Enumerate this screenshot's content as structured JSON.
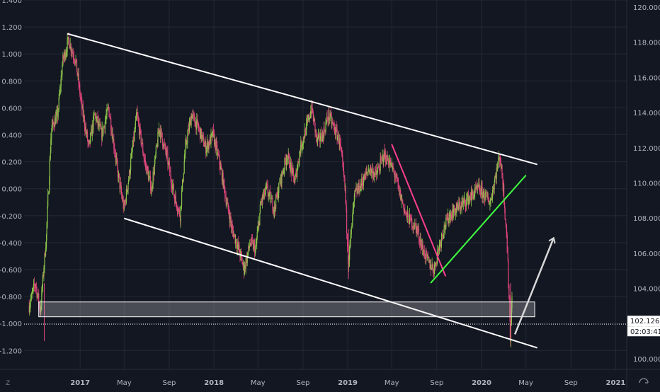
{
  "chart_data": {
    "type": "candlestick",
    "title": "",
    "xlabel": "",
    "ylabel": "",
    "left_axis": {
      "ticks": [
        "1.400",
        "1.200",
        "1.000",
        "0.800",
        "0.600",
        "0.400",
        "0.200",
        "0.000",
        "-0.200",
        "-0.400",
        "-0.600",
        "-0.800",
        "-1.000",
        "-1.200"
      ],
      "ylim": [
        -1.34,
        1.4
      ]
    },
    "right_axis": {
      "ticks": [
        "120.000",
        "118.000",
        "116.000",
        "114.000",
        "112.000",
        "110.000",
        "108.000",
        "106.000",
        "104.000",
        "102.000",
        "100.000"
      ],
      "ylim": [
        99.4,
        120.4
      ],
      "current_price": "102.126",
      "countdown": "02:03:41"
    },
    "x_axis": {
      "ticks": [
        "2017",
        "May",
        "Sep",
        "2018",
        "May",
        "Sep",
        "2019",
        "May",
        "Sep",
        "2020",
        "May",
        "Sep",
        "2021"
      ],
      "xlim": [
        "2016-08-01",
        "2021-01-31"
      ]
    },
    "colors": {
      "background": "#131722",
      "grid": "#242834",
      "text": "#b2b5be",
      "up": "#8bc34a",
      "down": "#e0457b",
      "channel": "#ffffff",
      "pink_trend": "#ff3f8e",
      "green_trend": "#3fff3f",
      "zone_fill": "#d6d6d6",
      "arrow": "#d8d8d8",
      "price_label_bg": "#ffffff",
      "price_label_text": "#131722"
    },
    "series": [
      {
        "values": [
          [
            "2016-08-15",
            -0.87
          ],
          [
            "2016-09-01",
            -0.7
          ],
          [
            "2016-09-15",
            -0.9
          ],
          [
            "2016-10-01",
            -0.35
          ],
          [
            "2016-10-15",
            0.45
          ],
          [
            "2016-11-01",
            0.55
          ],
          [
            "2016-11-15",
            0.95
          ],
          [
            "2016-12-01",
            1.1
          ],
          [
            "2016-12-20",
            0.95
          ],
          [
            "2017-01-05",
            0.62
          ],
          [
            "2017-01-25",
            0.3
          ],
          [
            "2017-02-10",
            0.55
          ],
          [
            "2017-03-01",
            0.4
          ],
          [
            "2017-03-20",
            0.6
          ],
          [
            "2017-04-10",
            0.2
          ],
          [
            "2017-04-20",
            0.02
          ],
          [
            "2017-05-01",
            -0.15
          ],
          [
            "2017-05-15",
            0.1
          ],
          [
            "2017-06-05",
            0.55
          ],
          [
            "2017-06-25",
            0.22
          ],
          [
            "2017-07-15",
            0.0
          ],
          [
            "2017-08-05",
            0.45
          ],
          [
            "2017-08-25",
            0.25
          ],
          [
            "2017-09-15",
            -0.05
          ],
          [
            "2017-10-01",
            -0.2
          ],
          [
            "2017-10-15",
            0.3
          ],
          [
            "2017-11-01",
            0.55
          ],
          [
            "2017-11-20",
            0.45
          ],
          [
            "2017-12-10",
            0.3
          ],
          [
            "2017-12-30",
            0.4
          ],
          [
            "2018-01-20",
            0.15
          ],
          [
            "2018-02-05",
            -0.1
          ],
          [
            "2018-02-20",
            -0.3
          ],
          [
            "2018-03-10",
            -0.45
          ],
          [
            "2018-03-25",
            -0.6
          ],
          [
            "2018-04-10",
            -0.4
          ],
          [
            "2018-04-25",
            -0.45
          ],
          [
            "2018-05-10",
            -0.1
          ],
          [
            "2018-05-25",
            0.0
          ],
          [
            "2018-06-15",
            -0.15
          ],
          [
            "2018-07-01",
            0.05
          ],
          [
            "2018-07-20",
            0.25
          ],
          [
            "2018-08-10",
            0.05
          ],
          [
            "2018-08-25",
            0.3
          ],
          [
            "2018-09-10",
            0.45
          ],
          [
            "2018-09-25",
            0.6
          ],
          [
            "2018-10-10",
            0.35
          ],
          [
            "2018-10-25",
            0.4
          ],
          [
            "2018-11-10",
            0.55
          ],
          [
            "2018-11-25",
            0.45
          ],
          [
            "2018-12-10",
            0.35
          ],
          [
            "2018-12-25",
            0.0
          ],
          [
            "2019-01-03",
            -0.55
          ],
          [
            "2019-01-20",
            -0.05
          ],
          [
            "2019-02-10",
            0.05
          ],
          [
            "2019-03-01",
            0.15
          ],
          [
            "2019-03-20",
            0.1
          ],
          [
            "2019-04-10",
            0.25
          ],
          [
            "2019-04-25",
            0.2
          ],
          [
            "2019-05-10",
            0.1
          ],
          [
            "2019-05-25",
            -0.05
          ],
          [
            "2019-06-10",
            -0.2
          ],
          [
            "2019-06-25",
            -0.25
          ],
          [
            "2019-07-10",
            -0.3
          ],
          [
            "2019-07-25",
            -0.45
          ],
          [
            "2019-08-10",
            -0.55
          ],
          [
            "2019-08-25",
            -0.6
          ],
          [
            "2019-09-05",
            -0.45
          ],
          [
            "2019-09-20",
            -0.3
          ],
          [
            "2019-10-05",
            -0.2
          ],
          [
            "2019-10-25",
            -0.15
          ],
          [
            "2019-11-15",
            -0.1
          ],
          [
            "2019-12-05",
            -0.05
          ],
          [
            "2019-12-25",
            0.0
          ],
          [
            "2020-01-10",
            -0.05
          ],
          [
            "2020-01-25",
            -0.1
          ],
          [
            "2020-02-05",
            0.05
          ],
          [
            "2020-02-20",
            0.25
          ],
          [
            "2020-03-01",
            0.0
          ],
          [
            "2020-03-10",
            -0.35
          ],
          [
            "2020-03-15",
            -0.7
          ],
          [
            "2020-03-20",
            -1.1
          ],
          [
            "2020-03-25",
            -0.8
          ]
        ]
      }
    ],
    "annotations": [
      {
        "kind": "trendline",
        "color": "channel",
        "from": [
          "2016-11-27",
          1.15
        ],
        "to": [
          "2020-06-01",
          0.18
        ]
      },
      {
        "kind": "trendline",
        "color": "channel",
        "from": [
          "2017-05-01",
          -0.22
        ],
        "to": [
          "2020-06-01",
          -1.18
        ]
      },
      {
        "kind": "trendline",
        "color": "pink_trend",
        "from": [
          "2019-05-01",
          0.33
        ],
        "to": [
          "2019-09-25",
          -0.65
        ]
      },
      {
        "kind": "trendline",
        "color": "green_trend",
        "from": [
          "2019-08-15",
          -0.7
        ],
        "to": [
          "2020-05-01",
          0.1
        ]
      },
      {
        "kind": "rectangle",
        "color": "zone_fill",
        "from": [
          "2016-09-10",
          -0.84
        ],
        "to": [
          "2020-05-25",
          -0.95
        ]
      },
      {
        "kind": "arrow",
        "color": "arrow",
        "from": [
          "2020-04-01",
          -1.08
        ],
        "to": [
          "2020-07-15",
          -0.37
        ]
      },
      {
        "kind": "hline",
        "style": "dotted",
        "value": -1.005
      }
    ]
  }
}
